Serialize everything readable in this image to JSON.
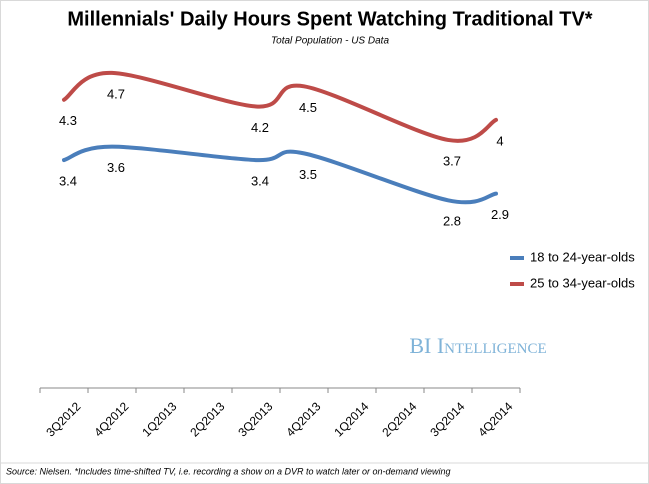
{
  "chart_data": {
    "type": "line",
    "title": "Millennials' Daily Hours Spent Watching Traditional TV*",
    "subtitle": "Total Population - US Data",
    "watermark": "BI Intelligence",
    "source": "Source: Nielsen. *Includes time-shifted TV, i.e. recording a show on a DVR to watch later or on-demand viewing",
    "categories": [
      "3Q2012",
      "4Q2012",
      "1Q2013",
      "2Q2013",
      "3Q2013",
      "4Q2013",
      "1Q2014",
      "2Q2014",
      "3Q2014",
      "4Q2014"
    ],
    "series": [
      {
        "name": "18 to 24-year-olds",
        "color": "#4a7ebb",
        "values": [
          3.4,
          3.6,
          null,
          null,
          3.4,
          3.5,
          null,
          null,
          2.8,
          2.9
        ]
      },
      {
        "name": "25 to 34-year-olds",
        "color": "#be4b48",
        "values": [
          4.3,
          4.7,
          null,
          null,
          4.2,
          4.5,
          null,
          null,
          3.7,
          4.0
        ]
      }
    ],
    "ylim": [
      0,
      5.4
    ],
    "span_gaps": true,
    "smooth": true,
    "legend": "right"
  }
}
